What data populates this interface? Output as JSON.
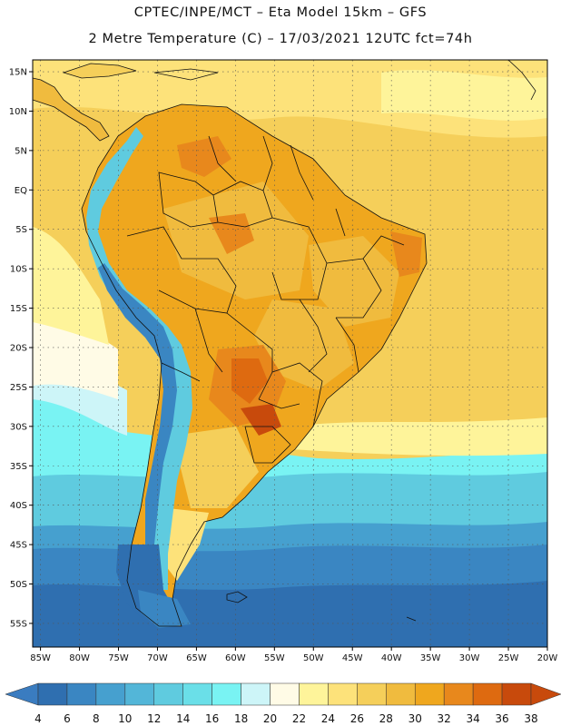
{
  "header": {
    "line1": "CPTEC/INPE/MCT –  Eta Model 15km – GFS",
    "line2": "2 Metre Temperature (C) – 17/03/2021 12UTC fct=74h"
  },
  "map": {
    "lat_labels": [
      "15N",
      "10N",
      "5N",
      "EQ",
      "5S",
      "10S",
      "15S",
      "20S",
      "25S",
      "30S",
      "35S",
      "40S",
      "45S",
      "50S",
      "55S"
    ],
    "lon_labels": [
      "85W",
      "80W",
      "75W",
      "70W",
      "65W",
      "60W",
      "55W",
      "50W",
      "45W",
      "40W",
      "35W",
      "30W",
      "25W",
      "20W"
    ],
    "lat_values": [
      15,
      10,
      5,
      0,
      -5,
      -10,
      -15,
      -20,
      -25,
      -30,
      -35,
      -40,
      -45,
      -50,
      -55
    ],
    "lon_values": [
      -85,
      -80,
      -75,
      -70,
      -65,
      -60,
      -55,
      -50,
      -45,
      -40,
      -35,
      -30,
      -25,
      -20
    ],
    "lat_range": [
      -58,
      16.5
    ],
    "lon_range": [
      -86,
      -20
    ]
  },
  "colorbar": {
    "labels": [
      "4",
      "6",
      "8",
      "10",
      "12",
      "14",
      "16",
      "18",
      "20",
      "22",
      "24",
      "26",
      "28",
      "30",
      "32",
      "34",
      "36",
      "38"
    ],
    "low_color": "#3a7cc0",
    "high_color": "#c84a0c",
    "colors": [
      "#2f6fb0",
      "#3a86c2",
      "#46a0cf",
      "#53b6d8",
      "#5fcbdf",
      "#6adfe8",
      "#79f3f3",
      "#cdf5f8",
      "#fffbe6",
      "#fef49a",
      "#fde27a",
      "#f5cf5a",
      "#f0bb3e",
      "#efa71e",
      "#e8881c",
      "#de6a10",
      "#c84a0c"
    ]
  }
}
